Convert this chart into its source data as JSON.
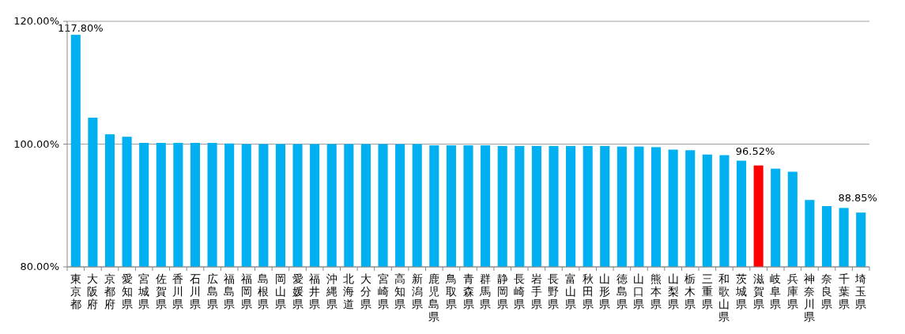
{
  "chart_data": {
    "type": "bar",
    "categories": [
      "東京都",
      "大阪府",
      "京都府",
      "愛知県",
      "宮城県",
      "佐賀県",
      "香川県",
      "石川県",
      "広島県",
      "福島県",
      "福岡県",
      "島根県",
      "岡山県",
      "愛媛県",
      "福井県",
      "沖縄県",
      "北海道",
      "大分県",
      "宮崎県",
      "高知県",
      "新潟県",
      "鹿児島県",
      "鳥取県",
      "青森県",
      "群馬県",
      "静岡県",
      "長崎県",
      "岩手県",
      "長野県",
      "富山県",
      "秋田県",
      "山形県",
      "徳島県",
      "山口県",
      "熊本県",
      "山梨県",
      "栃木県",
      "三重県",
      "和歌山県",
      "茨城県",
      "滋賀県",
      "岐阜県",
      "兵庫県",
      "神奈川県",
      "奈良県",
      "千葉県",
      "埼玉県"
    ],
    "values": [
      117.8,
      104.3,
      101.6,
      101.2,
      100.2,
      100.2,
      100.2,
      100.2,
      100.2,
      100.1,
      100.0,
      100.0,
      100.0,
      100.0,
      100.0,
      100.0,
      100.0,
      100.0,
      100.0,
      100.0,
      100.0,
      99.8,
      99.8,
      99.8,
      99.8,
      99.7,
      99.7,
      99.7,
      99.7,
      99.7,
      99.7,
      99.7,
      99.6,
      99.6,
      99.5,
      99.1,
      99.0,
      98.3,
      98.2,
      97.3,
      96.52,
      96.0,
      95.5,
      90.9,
      89.9,
      89.6,
      88.85
    ],
    "colors": [
      "#00b0f0",
      "#00b0f0",
      "#00b0f0",
      "#00b0f0",
      "#00b0f0",
      "#00b0f0",
      "#00b0f0",
      "#00b0f0",
      "#00b0f0",
      "#00b0f0",
      "#00b0f0",
      "#00b0f0",
      "#00b0f0",
      "#00b0f0",
      "#00b0f0",
      "#00b0f0",
      "#00b0f0",
      "#00b0f0",
      "#00b0f0",
      "#00b0f0",
      "#00b0f0",
      "#00b0f0",
      "#00b0f0",
      "#00b0f0",
      "#00b0f0",
      "#00b0f0",
      "#00b0f0",
      "#00b0f0",
      "#00b0f0",
      "#00b0f0",
      "#00b0f0",
      "#00b0f0",
      "#00b0f0",
      "#00b0f0",
      "#00b0f0",
      "#00b0f0",
      "#00b0f0",
      "#00b0f0",
      "#00b0f0",
      "#00b0f0",
      "#ff0000",
      "#00b0f0",
      "#00b0f0",
      "#00b0f0",
      "#00b0f0",
      "#00b0f0",
      "#00b0f0"
    ],
    "value_labels": [
      "117.80%",
      null,
      null,
      null,
      null,
      null,
      null,
      null,
      null,
      null,
      null,
      null,
      null,
      null,
      null,
      null,
      null,
      null,
      null,
      null,
      null,
      null,
      null,
      null,
      null,
      null,
      null,
      null,
      null,
      null,
      null,
      null,
      null,
      null,
      null,
      null,
      null,
      null,
      null,
      null,
      "96.52%",
      null,
      null,
      null,
      null,
      null,
      "88.85%"
    ],
    "ylim": [
      80,
      120
    ],
    "yticks": [
      {
        "value": 80,
        "label": "80.00%"
      },
      {
        "value": 100,
        "label": "100.00%"
      },
      {
        "value": 120,
        "label": "120.00%"
      }
    ],
    "grid": "y"
  }
}
